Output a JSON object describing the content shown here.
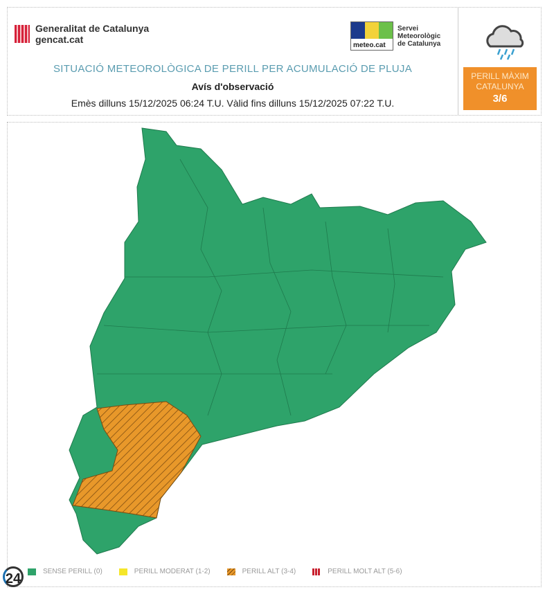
{
  "header": {
    "org_name": "Generalitat de Catalunya",
    "org_site": "gencat.cat",
    "meteo_logo_text": "meteo.cat",
    "meteo_name": [
      "Servei",
      "Meteorològic",
      "de Catalunya"
    ],
    "title": "SITUACIÓ METEOROLÒGICA DE PERILL PER ACUMULACIÓ DE PLUJA",
    "subtitle": "Avís d'observació",
    "validity": "Emès dilluns 15/12/2025 06:24 T.U. Vàlid fins dilluns 15/12/2025 07:22 T.U.",
    "weather_icon": "rain-cloud-icon"
  },
  "max_danger": {
    "line1": "PERILL MÀXIM",
    "line2": "CATALUNYA",
    "level": "3/6",
    "color": "#f0902a"
  },
  "map": {
    "colors": {
      "none": "#2ea36a",
      "moderate": "#f5e62a",
      "high": "#e8982a",
      "very_high": "#c8202e"
    }
  },
  "legend": [
    {
      "label": "SENSE PERILL (0)",
      "color": "#2ea36a"
    },
    {
      "label": "PERILL MODERAT (1-2)",
      "color": "#f5e62a"
    },
    {
      "label": "PERILL ALT (3-4)",
      "color": "#e8982a"
    },
    {
      "label": "PERILL MOLT ALT (5-6)",
      "color": "#c8202e"
    }
  ],
  "watermark": "24"
}
